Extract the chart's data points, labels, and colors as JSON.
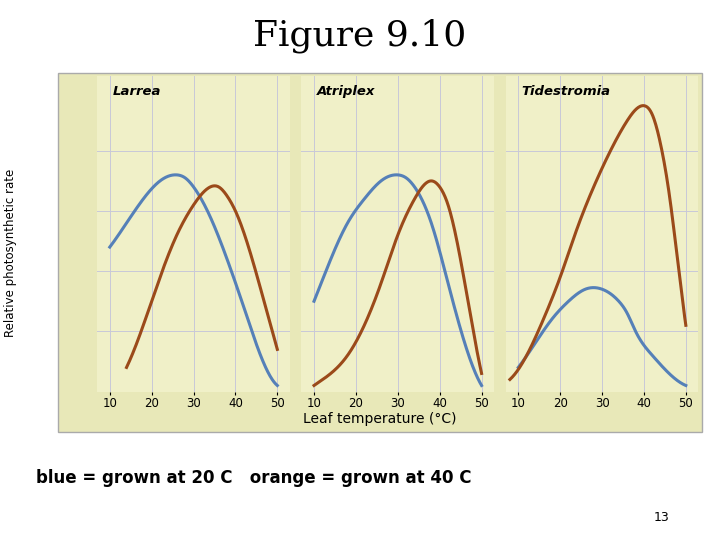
{
  "title": "Figure 9.10",
  "title_fontsize": 26,
  "background_color": "#ffffff",
  "panel_bg": "#f0f0c8",
  "outer_bg": "#e8e8b8",
  "xlabel": "Leaf temperature (°C)",
  "ylabel": "Relative photosynthetic rate",
  "xticks": [
    10,
    20,
    30,
    40,
    50
  ],
  "legend_text": "blue = grown at 20 C   orange = grown at 40 C",
  "page_number": "13",
  "panels": [
    {
      "label": "Larrea",
      "blue_x": [
        10,
        14,
        18,
        22,
        26,
        28,
        30,
        34,
        38,
        42,
        46,
        50
      ],
      "blue_y": [
        0.48,
        0.56,
        0.64,
        0.7,
        0.72,
        0.71,
        0.68,
        0.58,
        0.44,
        0.28,
        0.12,
        0.02
      ],
      "orange_x": [
        14,
        18,
        22,
        26,
        30,
        34,
        36,
        38,
        40,
        44,
        48,
        50
      ],
      "orange_y": [
        0.08,
        0.22,
        0.38,
        0.52,
        0.62,
        0.68,
        0.68,
        0.65,
        0.6,
        0.44,
        0.24,
        0.14
      ]
    },
    {
      "label": "Atriplex",
      "blue_x": [
        10,
        14,
        18,
        22,
        26,
        30,
        32,
        34,
        38,
        42,
        46,
        50
      ],
      "blue_y": [
        0.3,
        0.44,
        0.56,
        0.64,
        0.7,
        0.72,
        0.71,
        0.68,
        0.56,
        0.36,
        0.16,
        0.02
      ],
      "orange_x": [
        10,
        14,
        18,
        22,
        26,
        30,
        34,
        38,
        40,
        42,
        46,
        50
      ],
      "orange_y": [
        0.02,
        0.06,
        0.12,
        0.22,
        0.36,
        0.52,
        0.64,
        0.7,
        0.68,
        0.62,
        0.36,
        0.06
      ]
    },
    {
      "label": "Tidestromia",
      "blue_x": [
        10,
        14,
        18,
        22,
        26,
        30,
        34,
        36,
        38,
        42,
        46,
        50
      ],
      "blue_y": [
        0.08,
        0.16,
        0.24,
        0.3,
        0.34,
        0.34,
        0.3,
        0.26,
        0.2,
        0.12,
        0.06,
        0.02
      ],
      "orange_x": [
        8,
        12,
        16,
        20,
        24,
        28,
        32,
        36,
        40,
        42,
        44,
        46,
        48,
        50
      ],
      "orange_y": [
        0.04,
        0.12,
        0.24,
        0.38,
        0.54,
        0.68,
        0.8,
        0.9,
        0.95,
        0.92,
        0.82,
        0.66,
        0.44,
        0.22
      ]
    }
  ],
  "blue_color": "#5580b8",
  "orange_color": "#9b4a1a",
  "curve_lw": 2.2,
  "grid_color": "#c8c8d8"
}
